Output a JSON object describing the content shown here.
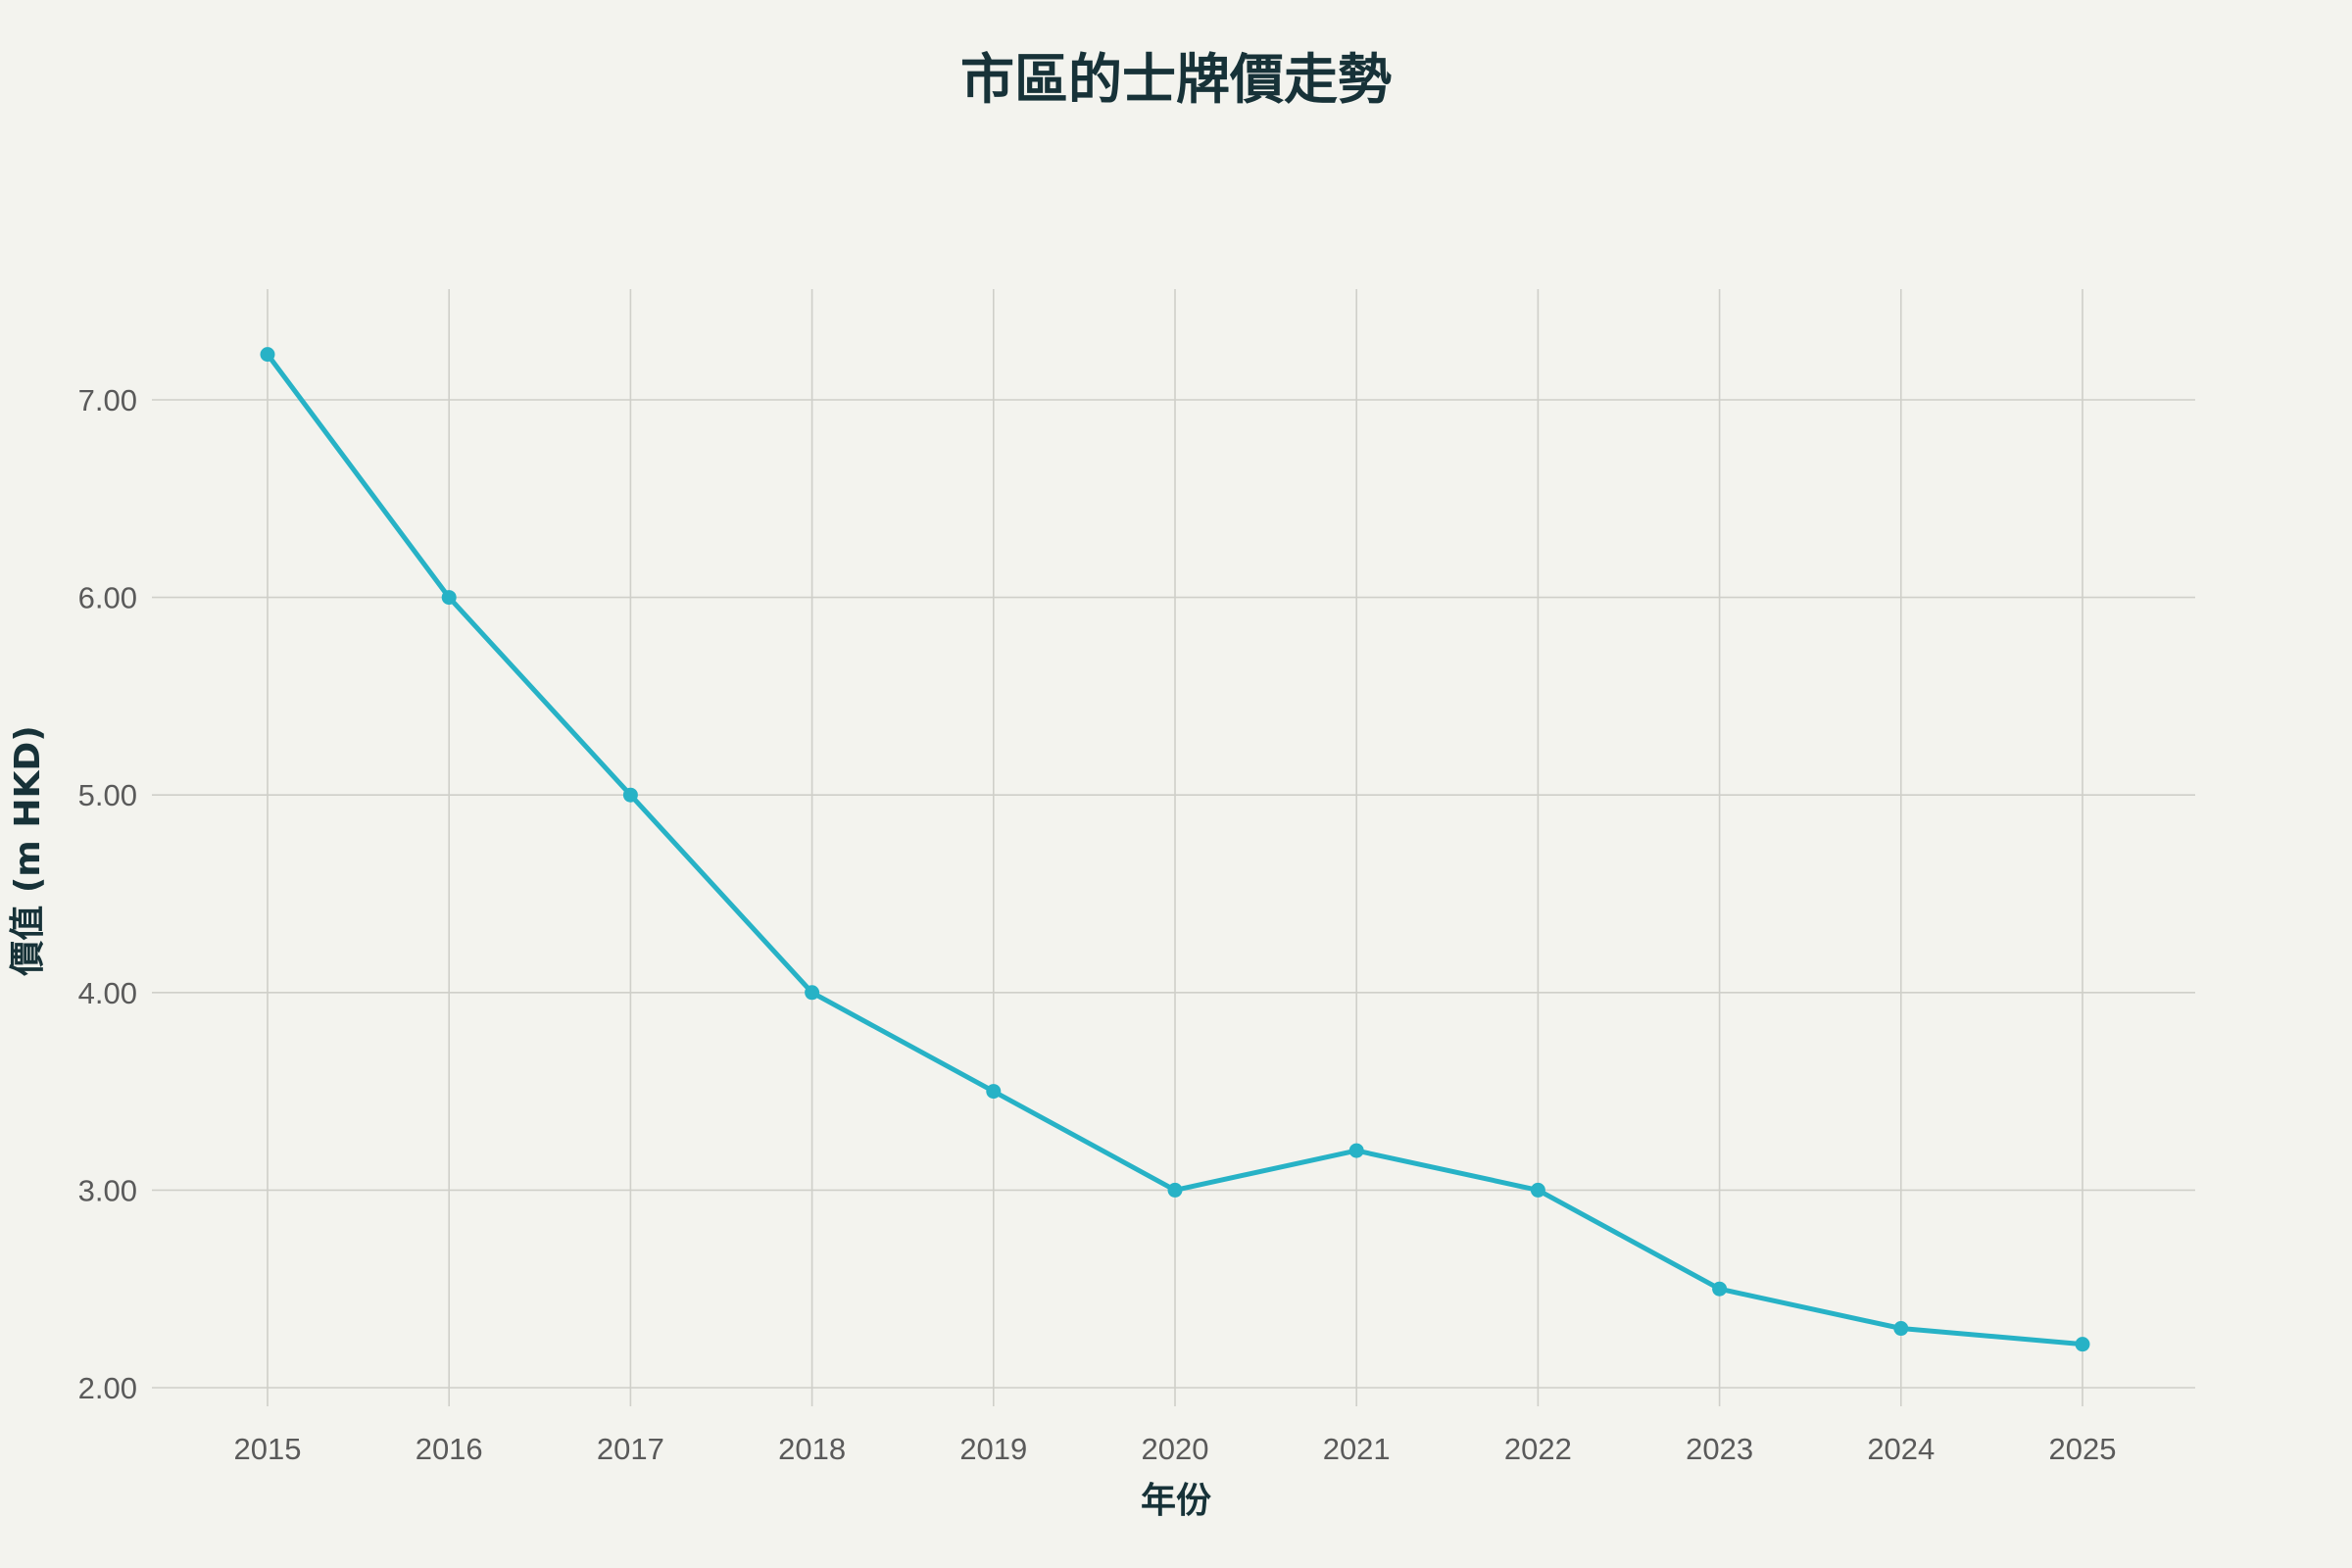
{
  "chart_data": {
    "type": "line",
    "title": "市區的士牌價走勢",
    "xlabel": "年份",
    "ylabel": "價值 (m HKD)",
    "categories": [
      "2015",
      "2016",
      "2017",
      "2018",
      "2019",
      "2020",
      "2021",
      "2022",
      "2023",
      "2024",
      "2025"
    ],
    "series": [
      {
        "values": [
          7.23,
          6.0,
          5.0,
          4.0,
          3.5,
          3.0,
          3.2,
          3.0,
          2.5,
          2.3,
          2.22
        ],
        "color": "#27b2c6"
      }
    ],
    "yticks": [
      "2.00",
      "3.00",
      "4.00",
      "5.00",
      "6.00",
      "7.00"
    ],
    "ylim": [
      2,
      7
    ],
    "grid": true,
    "legend": "none"
  }
}
